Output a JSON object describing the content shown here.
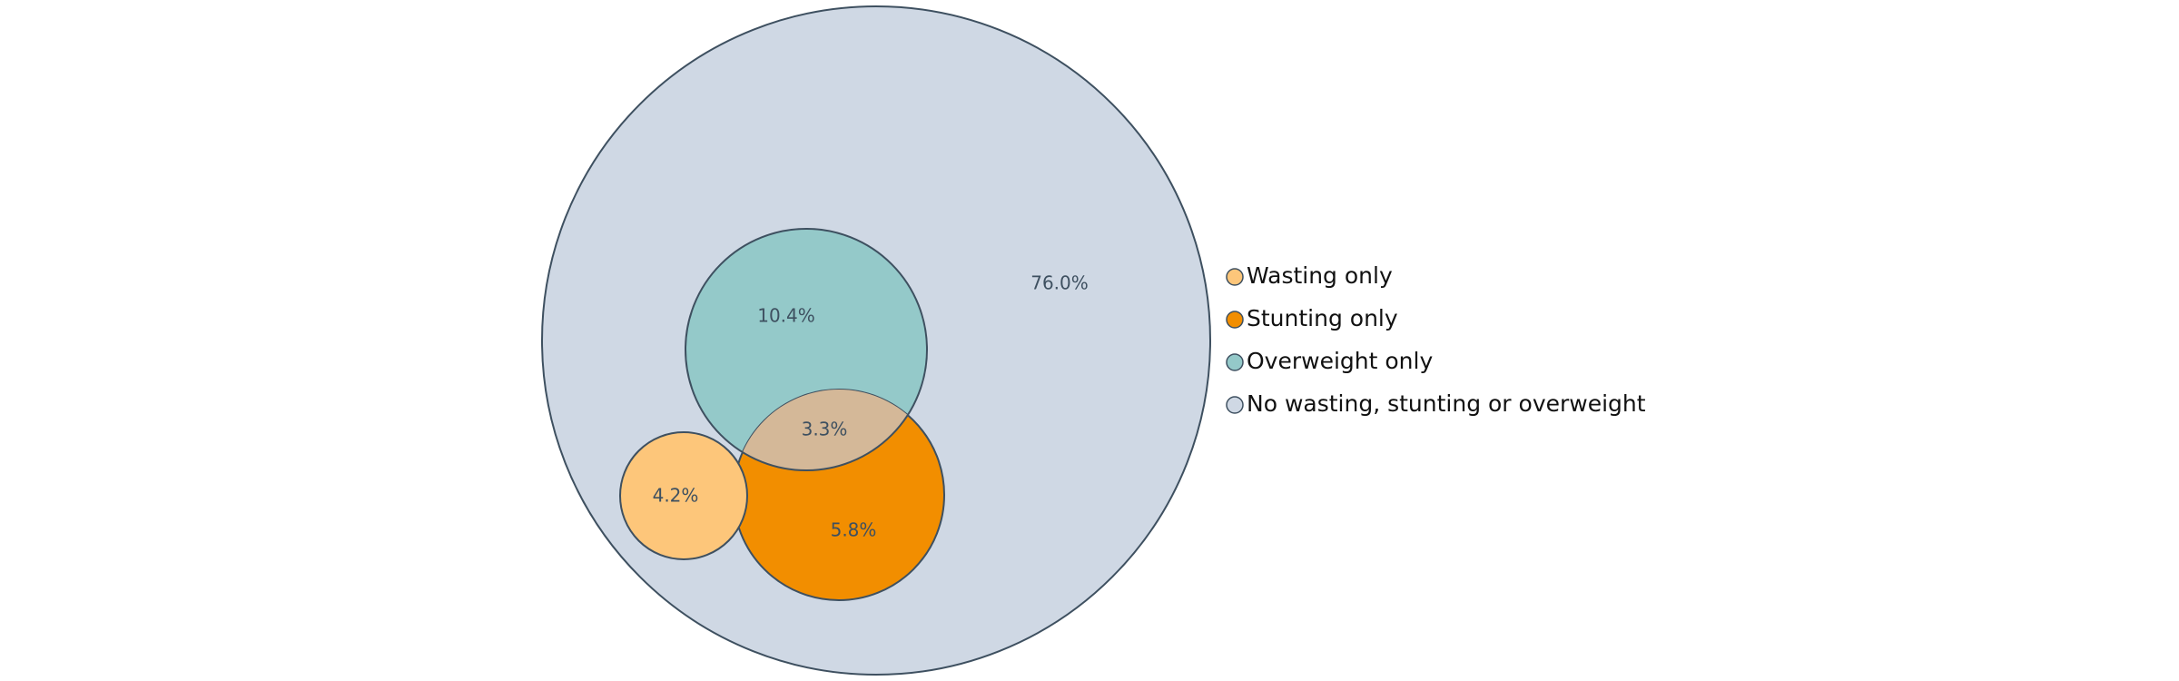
{
  "chart_data": {
    "type": "venn",
    "legend_position": "right",
    "series": [
      {
        "name": "Wasting only",
        "value": 4.2,
        "label": "4.2%",
        "color": "#fdc67a"
      },
      {
        "name": "Stunting only",
        "value": 5.8,
        "label": "5.8%",
        "color": "#f28e00"
      },
      {
        "name": "Overweight only",
        "value": 10.4,
        "label": "10.4%",
        "color": "#94c9c9"
      },
      {
        "name": "No wasting, stunting or overweight",
        "value": 76.0,
        "label": "76.0%",
        "color": "#cfd8e4"
      }
    ],
    "overlaps": [
      {
        "sets": [
          "Stunting only",
          "Overweight only"
        ],
        "value": 3.3,
        "label": "3.3%",
        "color": "#d4b898"
      }
    ],
    "outline_color": "#3e5060"
  }
}
